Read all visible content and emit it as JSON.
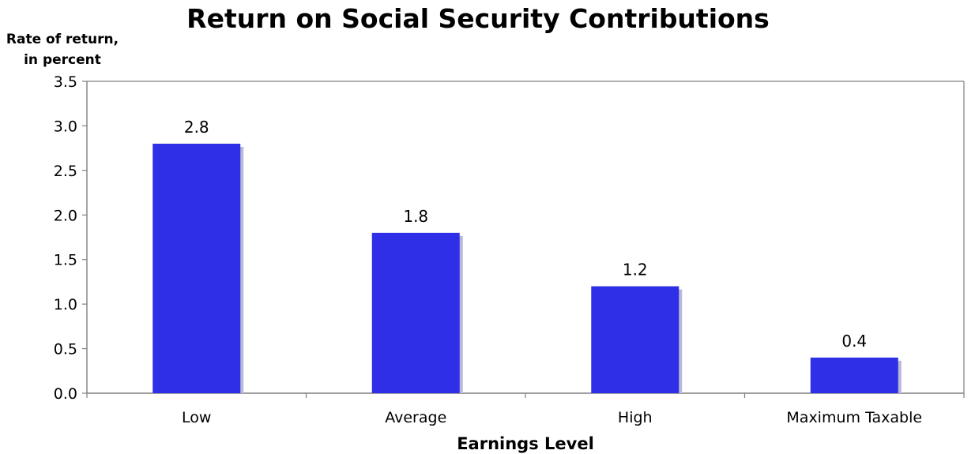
{
  "chart_data": {
    "type": "bar",
    "title": "Return on Social Security Contributions",
    "ylabel_lines": [
      "Rate of return,",
      "in percent"
    ],
    "xlabel": "Earnings Level",
    "categories": [
      "Low",
      "Average",
      "High",
      "Maximum Taxable"
    ],
    "values": [
      2.8,
      1.8,
      1.2,
      0.4
    ],
    "data_labels": [
      "2.8",
      "1.8",
      "1.2",
      "0.4"
    ],
    "ylim": [
      0,
      3.5
    ],
    "yticks": [
      "0.0",
      "0.5",
      "1.0",
      "1.5",
      "2.0",
      "2.5",
      "3.0",
      "3.5"
    ],
    "grid": false,
    "legend": "none",
    "colors": {
      "bar": "#2f2fe8",
      "bar_shadow": "#b8b8d8",
      "axis": "#808080"
    }
  }
}
